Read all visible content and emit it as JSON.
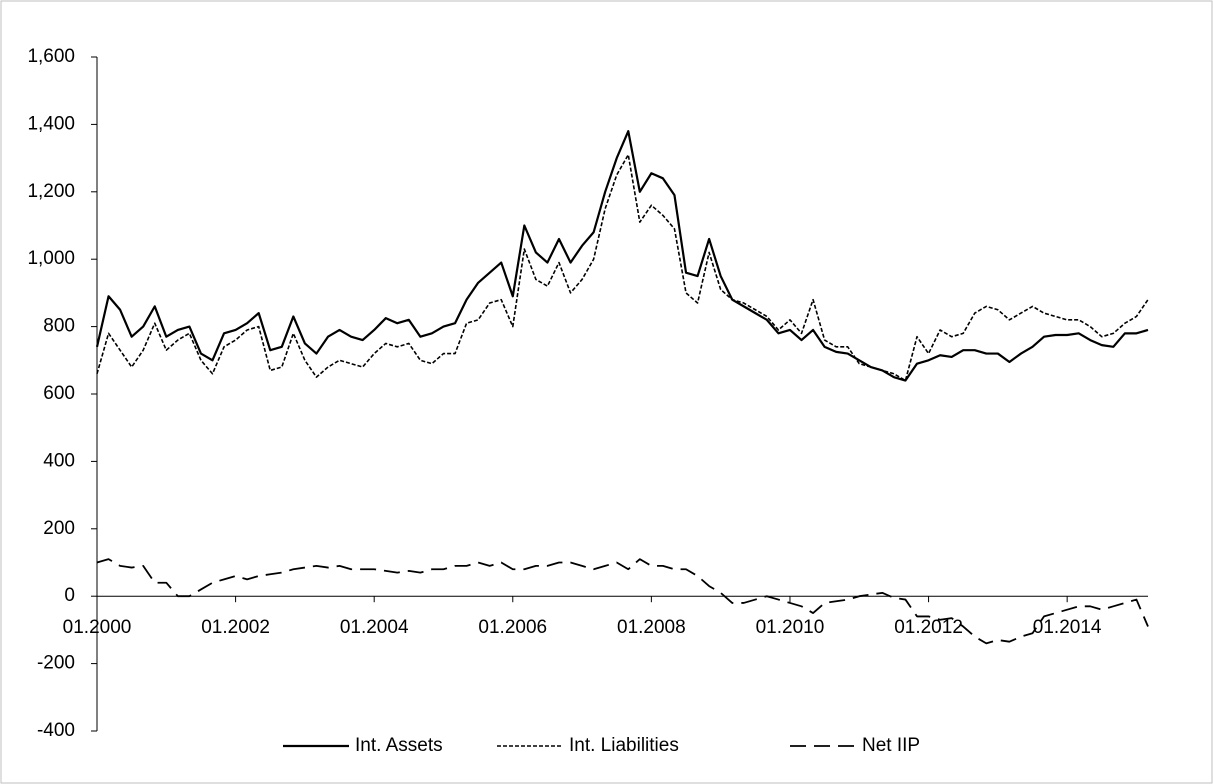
{
  "chart_data": {
    "type": "line",
    "categories": [
      "01.2000",
      null,
      null,
      null,
      null,
      null,
      null,
      null,
      null,
      null,
      null,
      null,
      "01.2002",
      null,
      null,
      null,
      null,
      null,
      null,
      null,
      null,
      null,
      null,
      null,
      "01.2004",
      null,
      null,
      null,
      null,
      null,
      null,
      null,
      null,
      null,
      null,
      null,
      "01.2006",
      null,
      null,
      null,
      null,
      null,
      null,
      null,
      null,
      null,
      null,
      null,
      "01.2008",
      null,
      null,
      null,
      null,
      null,
      null,
      null,
      null,
      null,
      null,
      null,
      "01.2010",
      null,
      null,
      null,
      null,
      null,
      null,
      null,
      null,
      null,
      null,
      null,
      "01.2012",
      null,
      null,
      null,
      null,
      null,
      null,
      null,
      null,
      null,
      null,
      null,
      "01.2014",
      null,
      null,
      null,
      null,
      null,
      null,
      null
    ],
    "series": [
      {
        "name": "Int. Assets",
        "color": "#000000",
        "line_style": "solid",
        "values": [
          740,
          890,
          850,
          770,
          800,
          860,
          770,
          790,
          800,
          720,
          700,
          780,
          790,
          810,
          840,
          730,
          740,
          830,
          750,
          720,
          770,
          790,
          770,
          760,
          790,
          825,
          810,
          820,
          770,
          780,
          800,
          810,
          880,
          930,
          960,
          990,
          890,
          1100,
          1020,
          990,
          1060,
          990,
          1040,
          1080,
          1200,
          1300,
          1380,
          1200,
          1255,
          1240,
          1190,
          960,
          950,
          1060,
          950,
          880,
          860,
          840,
          820,
          780,
          790,
          760,
          790,
          740,
          725,
          720,
          700,
          680,
          670,
          650,
          640,
          690,
          700,
          715,
          710,
          730,
          730,
          720,
          720,
          695,
          720,
          740,
          770,
          775,
          775,
          780,
          760,
          745,
          740,
          780,
          780,
          790
        ]
      },
      {
        "name": "Int. Liabilities",
        "color": "#000000",
        "line_style": "dotted",
        "values": [
          660,
          780,
          730,
          680,
          730,
          810,
          730,
          760,
          780,
          700,
          660,
          740,
          760,
          790,
          800,
          670,
          680,
          780,
          700,
          650,
          680,
          700,
          690,
          680,
          720,
          750,
          740,
          750,
          700,
          690,
          720,
          720,
          810,
          820,
          870,
          880,
          800,
          1030,
          940,
          920,
          990,
          900,
          940,
          1000,
          1150,
          1250,
          1310,
          1110,
          1160,
          1130,
          1090,
          900,
          870,
          1020,
          910,
          880,
          870,
          850,
          830,
          790,
          820,
          780,
          880,
          760,
          740,
          740,
          690,
          680,
          670,
          660,
          640,
          770,
          720,
          790,
          770,
          780,
          840,
          860,
          850,
          820,
          840,
          860,
          840,
          830,
          820,
          820,
          800,
          770,
          780,
          810,
          830,
          880
        ]
      },
      {
        "name": "Net IIP",
        "color": "#000000",
        "line_style": "dashed",
        "values": [
          100,
          110,
          90,
          85,
          90,
          40,
          40,
          0,
          0,
          20,
          40,
          50,
          60,
          50,
          60,
          65,
          70,
          80,
          85,
          90,
          85,
          90,
          80,
          80,
          80,
          75,
          70,
          75,
          70,
          80,
          80,
          90,
          90,
          100,
          90,
          100,
          80,
          80,
          90,
          90,
          100,
          100,
          90,
          80,
          90,
          100,
          80,
          110,
          90,
          90,
          80,
          80,
          60,
          30,
          10,
          -20,
          -20,
          -10,
          0,
          -10,
          -20,
          -30,
          -50,
          -20,
          -15,
          -10,
          0,
          5,
          10,
          -5,
          -10,
          -60,
          -60,
          -70,
          -65,
          -90,
          -120,
          -140,
          -130,
          -135,
          -120,
          -110,
          -60,
          -50,
          -40,
          -30,
          -30,
          -40,
          -30,
          -20,
          -10,
          -90
        ]
      }
    ],
    "ylim": [
      -400,
      1600
    ],
    "yticks": [
      -400,
      -200,
      0,
      200,
      400,
      600,
      800,
      {
        "value": 1000,
        "label": "1,000"
      },
      {
        "value": 1200,
        "label": "1,200"
      },
      {
        "value": 1400,
        "label": "1,400"
      },
      {
        "value": 1600,
        "label": "1,600"
      }
    ],
    "grid": false,
    "legend": "bottom"
  }
}
